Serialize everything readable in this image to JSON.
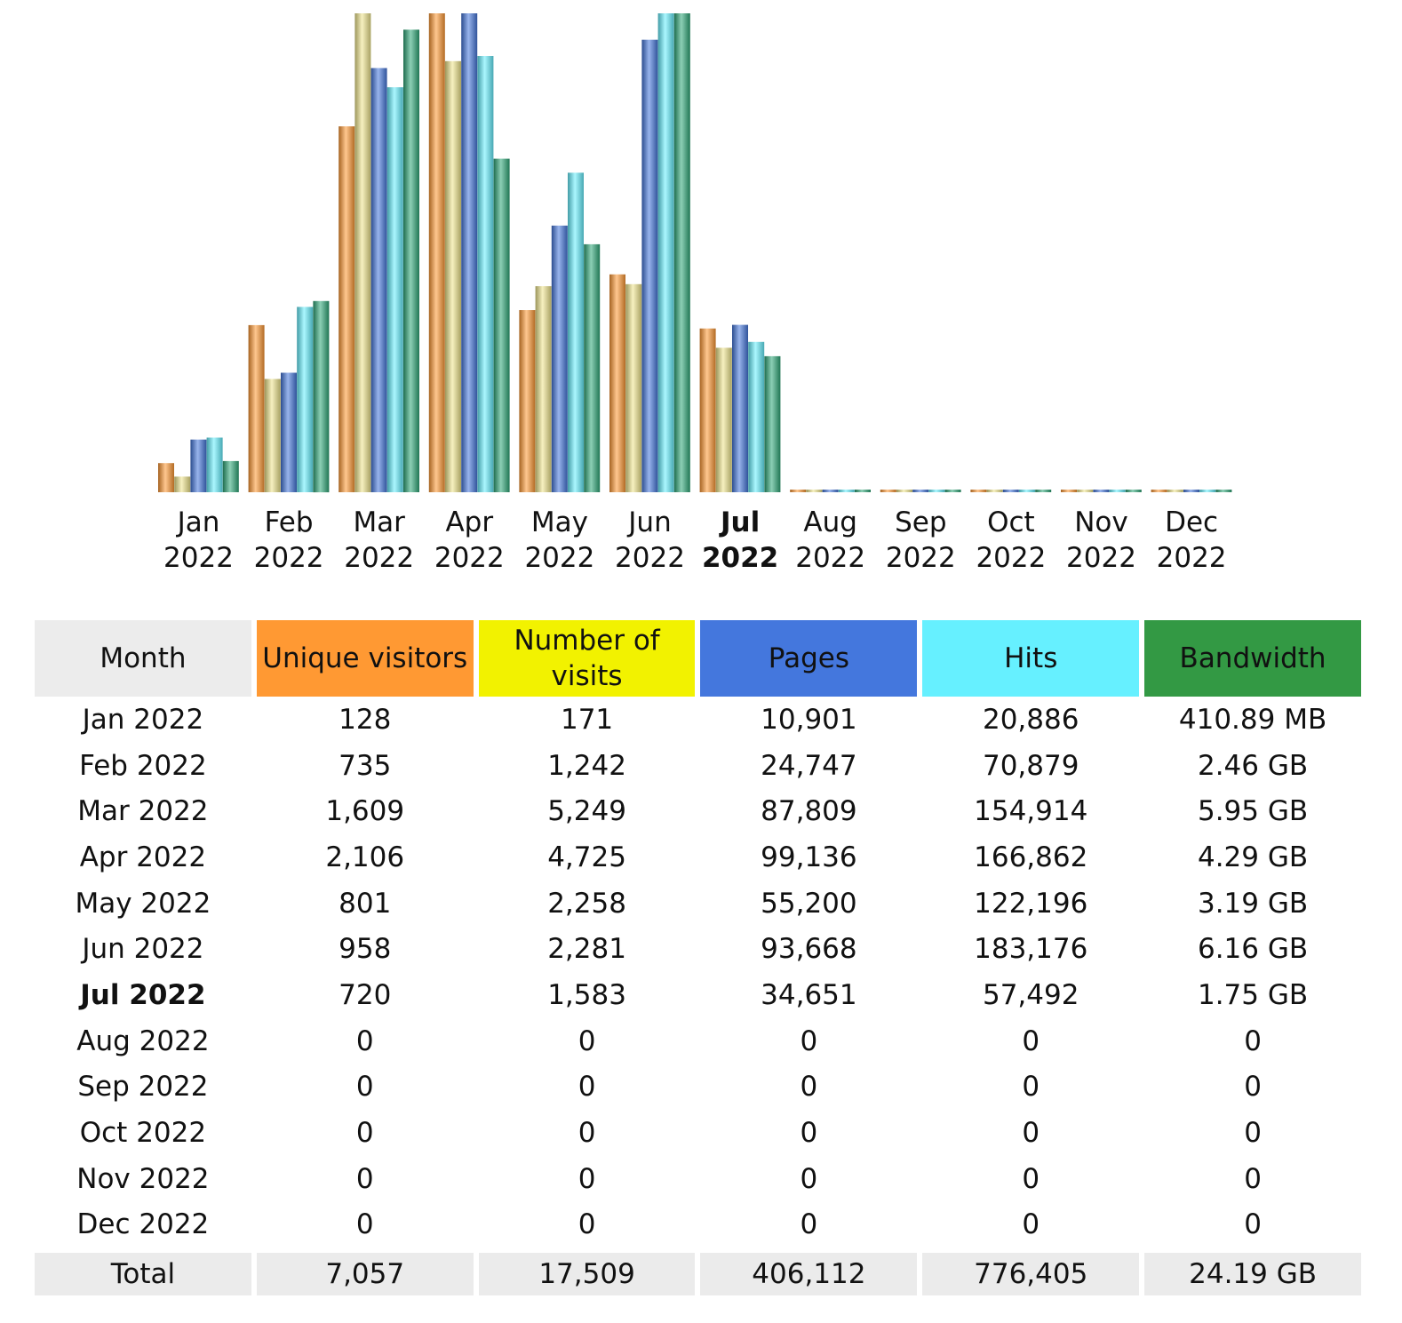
{
  "chart_data": {
    "type": "bar",
    "categories": [
      [
        "Jan",
        "2022"
      ],
      [
        "Feb",
        "2022"
      ],
      [
        "Mar",
        "2022"
      ],
      [
        "Apr",
        "2022"
      ],
      [
        "May",
        "2022"
      ],
      [
        "Jun",
        "2022"
      ],
      [
        "Jul",
        "2022"
      ],
      [
        "Aug",
        "2022"
      ],
      [
        "Sep",
        "2022"
      ],
      [
        "Oct",
        "2022"
      ],
      [
        "Nov",
        "2022"
      ],
      [
        "Dec",
        "2022"
      ]
    ],
    "current_category_index": 6,
    "normalization": "each series scaled to its own maximum",
    "series": [
      {
        "name": "Unique visitors",
        "color": "#ff9933",
        "values": [
          128,
          735,
          1609,
          2106,
          801,
          958,
          720,
          0,
          0,
          0,
          0,
          0
        ]
      },
      {
        "name": "Number of visits",
        "color": "#f0e68c",
        "values": [
          171,
          1242,
          5249,
          4725,
          2258,
          2281,
          1583,
          0,
          0,
          0,
          0,
          0
        ]
      },
      {
        "name": "Pages",
        "color": "#4477dd",
        "values": [
          10901,
          24747,
          87809,
          99136,
          55200,
          93668,
          34651,
          0,
          0,
          0,
          0,
          0
        ]
      },
      {
        "name": "Hits",
        "color": "#66f0ff",
        "values": [
          20886,
          70879,
          154914,
          166862,
          122196,
          183176,
          57492,
          0,
          0,
          0,
          0,
          0
        ]
      },
      {
        "name": "Bandwidth",
        "unit": "GB",
        "color": "#2ea878",
        "values": [
          0.40126,
          2.46,
          5.95,
          4.29,
          3.19,
          6.16,
          1.75,
          0,
          0,
          0,
          0,
          0
        ]
      }
    ]
  },
  "table": {
    "headers": [
      {
        "label": "Month",
        "color": "#ececec"
      },
      {
        "label": "Unique visitors",
        "color": "#ff9933"
      },
      {
        "label": "Number of visits",
        "color": "#f2f200"
      },
      {
        "label": "Pages",
        "color": "#4477dd"
      },
      {
        "label": "Hits",
        "color": "#66f0ff"
      },
      {
        "label": "Bandwidth",
        "color": "#339944"
      }
    ],
    "rows": [
      [
        "Jan 2022",
        "128",
        "171",
        "10,901",
        "20,886",
        "410.89 MB"
      ],
      [
        "Feb 2022",
        "735",
        "1,242",
        "24,747",
        "70,879",
        "2.46 GB"
      ],
      [
        "Mar 2022",
        "1,609",
        "5,249",
        "87,809",
        "154,914",
        "5.95 GB"
      ],
      [
        "Apr 2022",
        "2,106",
        "4,725",
        "99,136",
        "166,862",
        "4.29 GB"
      ],
      [
        "May 2022",
        "801",
        "2,258",
        "55,200",
        "122,196",
        "3.19 GB"
      ],
      [
        "Jun 2022",
        "958",
        "2,281",
        "93,668",
        "183,176",
        "6.16 GB"
      ],
      [
        "Jul 2022",
        "720",
        "1,583",
        "34,651",
        "57,492",
        "1.75 GB"
      ],
      [
        "Aug 2022",
        "0",
        "0",
        "0",
        "0",
        "0"
      ],
      [
        "Sep 2022",
        "0",
        "0",
        "0",
        "0",
        "0"
      ],
      [
        "Oct 2022",
        "0",
        "0",
        "0",
        "0",
        "0"
      ],
      [
        "Nov 2022",
        "0",
        "0",
        "0",
        "0",
        "0"
      ],
      [
        "Dec 2022",
        "0",
        "0",
        "0",
        "0",
        "0"
      ]
    ],
    "total": [
      "Total",
      "7,057",
      "17,509",
      "406,112",
      "776,405",
      "24.19 GB"
    ]
  }
}
